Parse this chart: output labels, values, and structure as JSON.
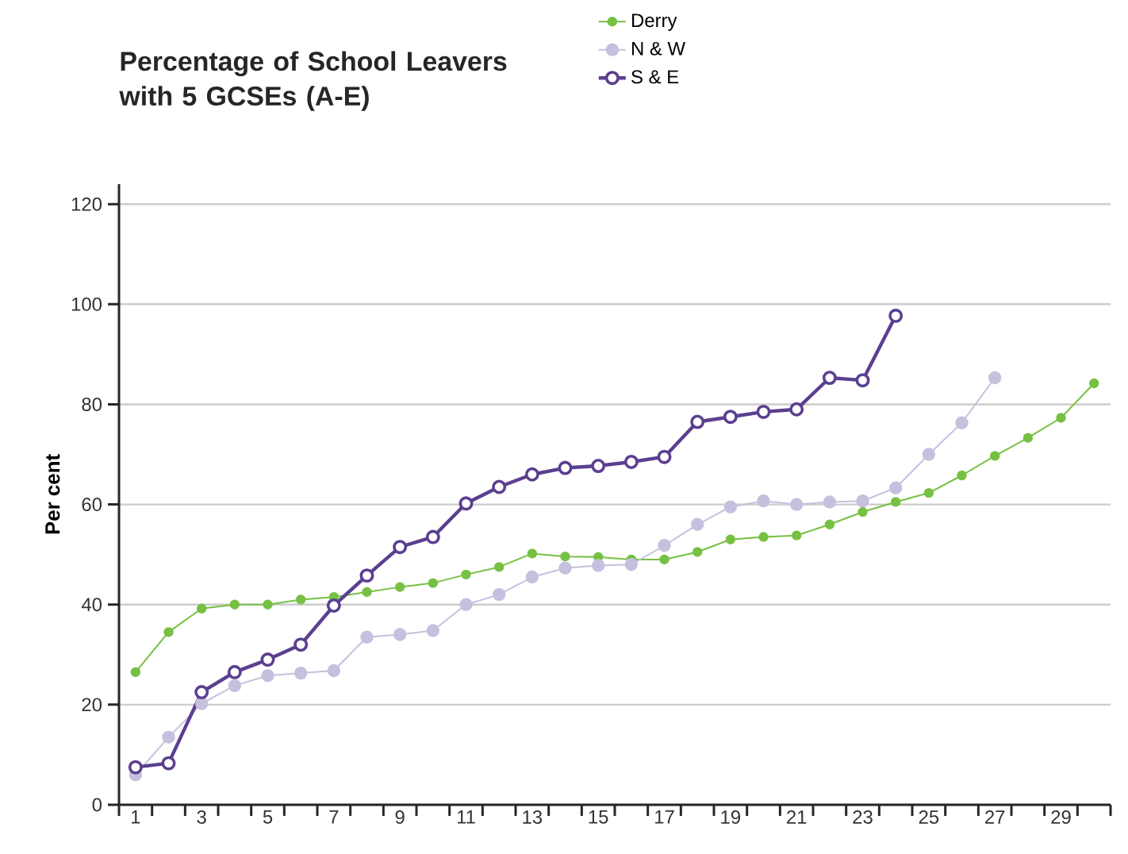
{
  "chart_data": {
    "type": "line",
    "title": "Percentage of School Leavers with 5 GCSEs (A-E)",
    "ylabel": "Per cent",
    "x": [
      1,
      2,
      3,
      4,
      5,
      6,
      7,
      8,
      9,
      10,
      11,
      12,
      13,
      14,
      15,
      16,
      17,
      18,
      19,
      20,
      21,
      22,
      23,
      24,
      25,
      26,
      27,
      28,
      29,
      30
    ],
    "series": [
      {
        "name": "Derry",
        "color": "#76c043",
        "marker": "circle",
        "values": [
          26.5,
          34.5,
          39.2,
          40,
          40,
          41,
          41.5,
          42.5,
          43.5,
          44.3,
          46,
          47.5,
          50.2,
          49.6,
          49.5,
          49,
          49,
          50.5,
          53,
          53.5,
          53.8,
          56,
          58.5,
          60.5,
          62.3,
          65.8,
          69.7,
          73.3,
          77.3,
          84.2
        ]
      },
      {
        "name": "N & W",
        "color": "#c5c0de",
        "marker": "circle",
        "values": [
          6,
          13.5,
          20.2,
          23.8,
          25.8,
          26.3,
          26.8,
          33.5,
          34,
          34.8,
          40,
          42,
          45.5,
          47.3,
          47.8,
          48,
          51.8,
          56,
          59.5,
          60.7,
          60,
          60.5,
          60.7,
          63.3,
          70,
          76.3,
          85.3,
          null,
          null,
          null
        ]
      },
      {
        "name": "S & E",
        "color": "#5b3f8f",
        "marker": "open circle",
        "values": [
          7.5,
          8.3,
          22.5,
          26.5,
          29,
          32,
          39.8,
          45.8,
          51.5,
          53.5,
          60.2,
          63.5,
          66,
          67.3,
          67.7,
          68.5,
          69.5,
          76.5,
          77.5,
          78.5,
          79,
          85.3,
          84.8,
          97.7,
          null,
          null,
          null,
          null,
          null,
          null
        ]
      }
    ],
    "xlim": [
      0.5,
      30.5
    ],
    "ylim": [
      0,
      124
    ],
    "xticks": [
      1,
      3,
      5,
      7,
      9,
      11,
      13,
      15,
      17,
      19,
      21,
      23,
      25,
      27,
      29,
      {
        "value": 0.5,
        "label": null
      },
      {
        "value": 1.5,
        "label": null
      },
      {
        "value": 2.5,
        "label": null
      },
      {
        "value": 3.5,
        "label": null
      },
      {
        "value": 4.5,
        "label": null
      },
      {
        "value": 5.5,
        "label": null
      },
      {
        "value": 6.5,
        "label": null
      },
      {
        "value": 7.5,
        "label": null
      },
      {
        "value": 8.5,
        "label": null
      },
      {
        "value": 9.5,
        "label": null
      },
      {
        "value": 10.5,
        "label": null
      },
      {
        "value": 11.5,
        "label": null
      },
      {
        "value": 12.5,
        "label": null
      },
      {
        "value": 13.5,
        "label": null
      },
      {
        "value": 14.5,
        "label": null
      },
      {
        "value": 15.5,
        "label": null
      },
      {
        "value": 16.5,
        "label": null
      },
      {
        "value": 17.5,
        "label": null
      },
      {
        "value": 18.5,
        "label": null
      },
      {
        "value": 19.5,
        "label": null
      },
      {
        "value": 20.5,
        "label": null
      },
      {
        "value": 21.5,
        "label": null
      },
      {
        "value": 22.5,
        "label": null
      },
      {
        "value": 23.5,
        "label": null
      },
      {
        "value": 24.5,
        "label": null
      },
      {
        "value": 25.5,
        "label": null
      },
      {
        "value": 26.5,
        "label": null
      },
      {
        "value": 27.5,
        "label": null
      },
      {
        "value": 28.5,
        "label": null
      },
      {
        "value": 29.5,
        "label": null
      },
      {
        "value": 30.5,
        "label": null
      }
    ],
    "yticks": [
      0,
      20,
      40,
      60,
      80,
      100,
      120
    ],
    "grid": "y",
    "legend": "top",
    "line_style": "solid"
  }
}
